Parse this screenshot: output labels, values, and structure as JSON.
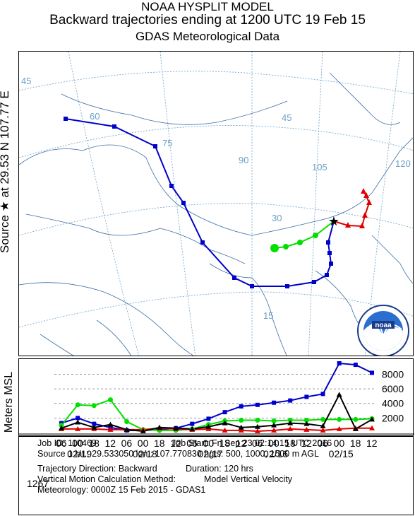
{
  "header": {
    "line1": "NOAA HYSPLIT MODEL",
    "line2": "Backward trajectories ending at 1200 UTC 19 Feb 15",
    "line3": "GDAS Meteorological Data"
  },
  "source_label": "Source ★ at  29.53 N  107.77 E",
  "colors": {
    "blue": "#0000cc",
    "green": "#00e000",
    "red": "#e00000",
    "black": "#000000",
    "grid": "#6aa0c8",
    "border": "#3a6ea5"
  },
  "chart_data": [
    {
      "type": "map",
      "grid_labels": [
        "45",
        "60",
        "75",
        "90",
        "105",
        "120",
        "45",
        "30",
        "15"
      ],
      "source": {
        "lat": 29.53,
        "lon": 107.77
      },
      "series": [
        {
          "name": "500 m AGL",
          "color": "#e00000"
        },
        {
          "name": "1000 m AGL",
          "color": "#00e000"
        },
        {
          "name": "1500 m AGL",
          "color": "#0000cc"
        }
      ]
    },
    {
      "type": "line",
      "ylabel": "Meters MSL",
      "y_ticks": [
        "8000",
        "6000",
        "4000",
        "2000"
      ],
      "start_height_label": "1267",
      "x_tick_labels": [
        "06",
        "00",
        "18",
        "12",
        "06",
        "00",
        "18",
        "12",
        "06",
        "00",
        "18",
        "12",
        "06",
        "00",
        "18",
        "12",
        "06",
        "00",
        "18",
        "12"
      ],
      "date_labels": [
        "02/19",
        "02/18",
        "02/17",
        "02/16",
        "02/15"
      ],
      "ylim": [
        0,
        9500
      ],
      "series": [
        {
          "name": "1500 m AGL",
          "color": "#0000cc",
          "values": [
            1300,
            2000,
            1200,
            700,
            300,
            300,
            400,
            600,
            1200,
            1900,
            2800,
            3600,
            3800,
            4100,
            4400,
            4900,
            5300,
            9500,
            9300,
            8200
          ]
        },
        {
          "name": "1000 m AGL",
          "color": "#00e000",
          "values": [
            1000,
            3800,
            3700,
            4500,
            1500,
            400,
            300,
            300,
            500,
            1100,
            1600,
            1700,
            1700,
            1600,
            1700,
            1700,
            1800,
            1800,
            1800,
            1900
          ]
        },
        {
          "name": "500 m AGL",
          "color": "#e00000",
          "values": [
            500,
            500,
            500,
            400,
            400,
            400,
            600,
            500,
            400,
            500,
            300,
            300,
            200,
            300,
            500,
            400,
            300,
            500,
            600,
            600
          ]
        },
        {
          "name": "500 m AGL (black)",
          "color": "#000000",
          "values": [
            600,
            1400,
            700,
            1100,
            400,
            200,
            700,
            600,
            500,
            800,
            1300,
            700,
            800,
            1000,
            1300,
            1200,
            900,
            5200,
            500,
            1800
          ]
        }
      ]
    }
  ],
  "info": {
    "job_id": "Job ID: 110469",
    "job_start": "Job Start: Fri Sep 23 02:14:15 UTC 2016",
    "source1": "Source 1 lat.: 29.533050  lon.: 107.770830  hgts: 500, 1000, 1500 m AGL",
    "direction": "Trajectory Direction: Backward",
    "duration": "Duration: 120 hrs",
    "vertical": "Vertical Motion Calculation Method:",
    "vertical_val": "Model Vertical Velocity",
    "meteorology": "Meteorology: 0000Z 15 Feb 2015 - GDAS1"
  }
}
